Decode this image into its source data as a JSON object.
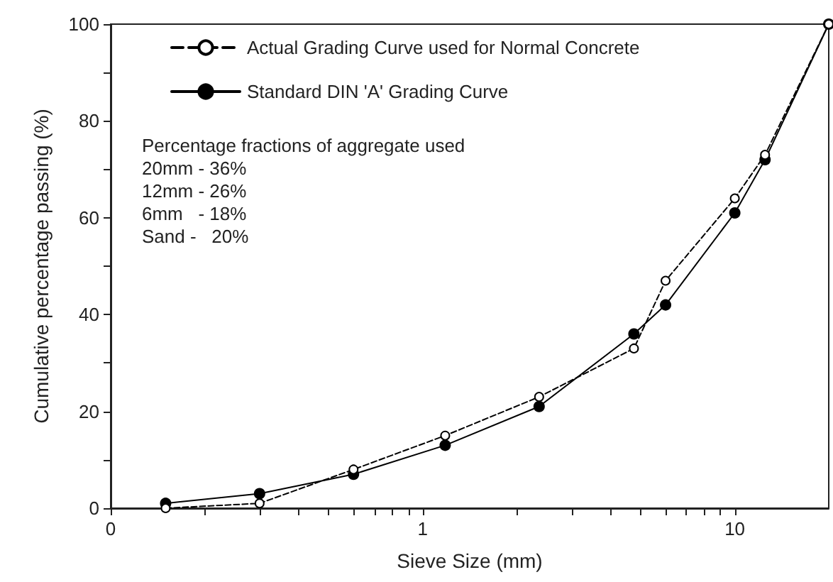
{
  "chart_data": {
    "type": "line",
    "xlabel": "Sieve Size (mm)",
    "ylabel": "Cumulative percentage passing (%)",
    "x": [
      0.15,
      0.3,
      0.6,
      1.18,
      2.36,
      4.75,
      6,
      10,
      12.5,
      20
    ],
    "series": [
      {
        "name": "Actual Grading Curve used for Normal Concrete",
        "color": "#000000",
        "marker": "circle",
        "line_style": "dashed",
        "values": [
          0,
          1,
          8,
          15,
          23,
          33,
          47,
          64,
          73,
          100
        ]
      },
      {
        "name": "Standard DIN 'A' Grading Curve",
        "color": "#000000",
        "marker": "circle",
        "line_style": "solid",
        "values": [
          1,
          3,
          7,
          13,
          21,
          36,
          42,
          61,
          72,
          100
        ]
      }
    ],
    "log": "x",
    "xlim": [
      0.1,
      20
    ],
    "ylim": [
      0,
      100
    ],
    "xticks": [
      {
        "value": 0.1,
        "label": "0"
      },
      {
        "value": 0.2,
        "label": null
      },
      {
        "value": 0.3,
        "label": null
      },
      {
        "value": 0.4,
        "label": null
      },
      {
        "value": 0.5,
        "label": null
      },
      {
        "value": 0.6,
        "label": null
      },
      {
        "value": 0.7,
        "label": null
      },
      {
        "value": 0.8,
        "label": null
      },
      {
        "value": 0.9,
        "label": null
      },
      1,
      {
        "value": 2,
        "label": null
      },
      {
        "value": 3,
        "label": null
      },
      {
        "value": 4,
        "label": null
      },
      {
        "value": 5,
        "label": null
      },
      {
        "value": 6,
        "label": null
      },
      {
        "value": 7,
        "label": null
      },
      {
        "value": 8,
        "label": null
      },
      {
        "value": 9,
        "label": null
      },
      10
    ],
    "yticks": [
      0,
      {
        "value": 10,
        "label": null
      },
      20,
      {
        "value": 30,
        "label": null
      },
      40,
      {
        "value": 50,
        "label": null
      },
      60,
      {
        "value": 70,
        "label": null
      },
      80,
      {
        "value": 90,
        "label": null
      },
      100
    ],
    "grid": false,
    "legend": "top left",
    "annotations": [
      "Percentage fractions of aggregate used",
      "20mm - 36%",
      "12mm - 26%",
      "6mm   - 18%",
      "Sand -   20%"
    ]
  }
}
